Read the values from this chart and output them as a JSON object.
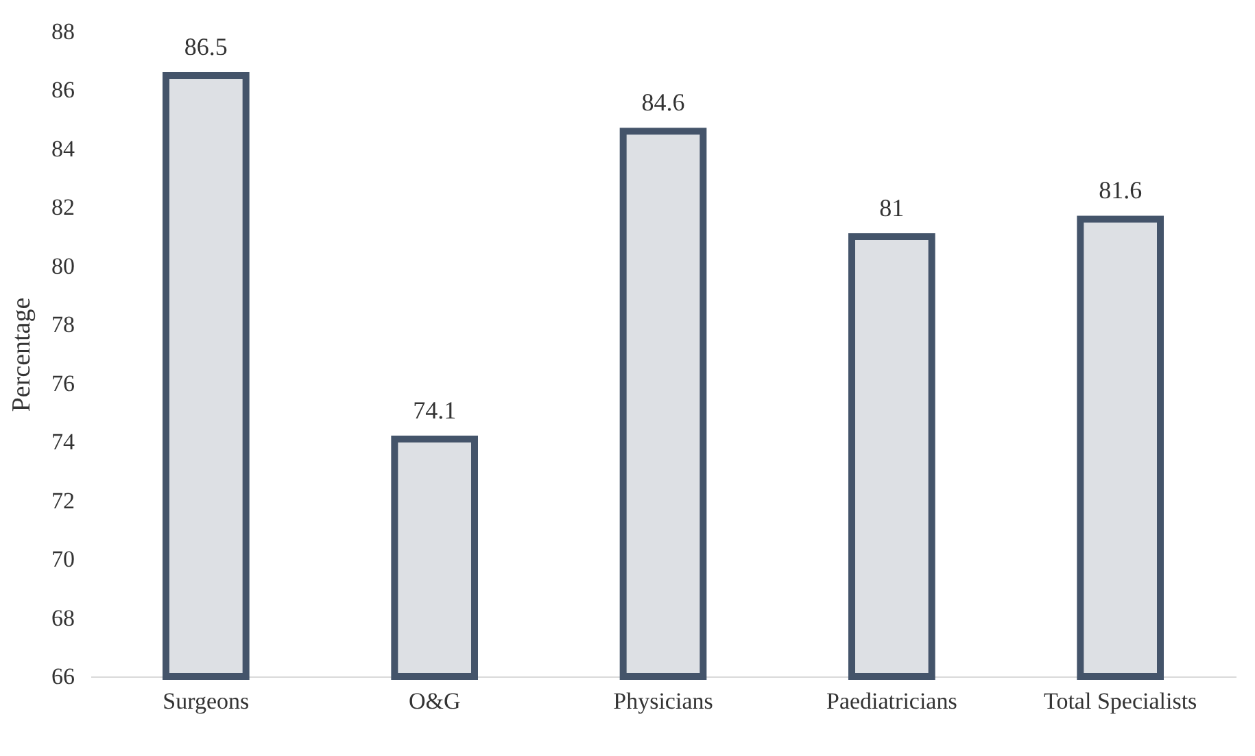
{
  "chart_data": {
    "type": "bar",
    "ylabel": "Percentage",
    "categories": [
      "Surgeons",
      "O&G",
      "Physicians",
      "Paediatricians",
      "Total Specialists"
    ],
    "values": [
      86.5,
      74.1,
      84.6,
      81,
      81.6
    ],
    "color": "#44546a",
    "ylim": [
      66,
      88
    ],
    "yticks": [
      66,
      68,
      70,
      72,
      74,
      76,
      78,
      80,
      82,
      84,
      86,
      88
    ],
    "data_labels": true
  }
}
